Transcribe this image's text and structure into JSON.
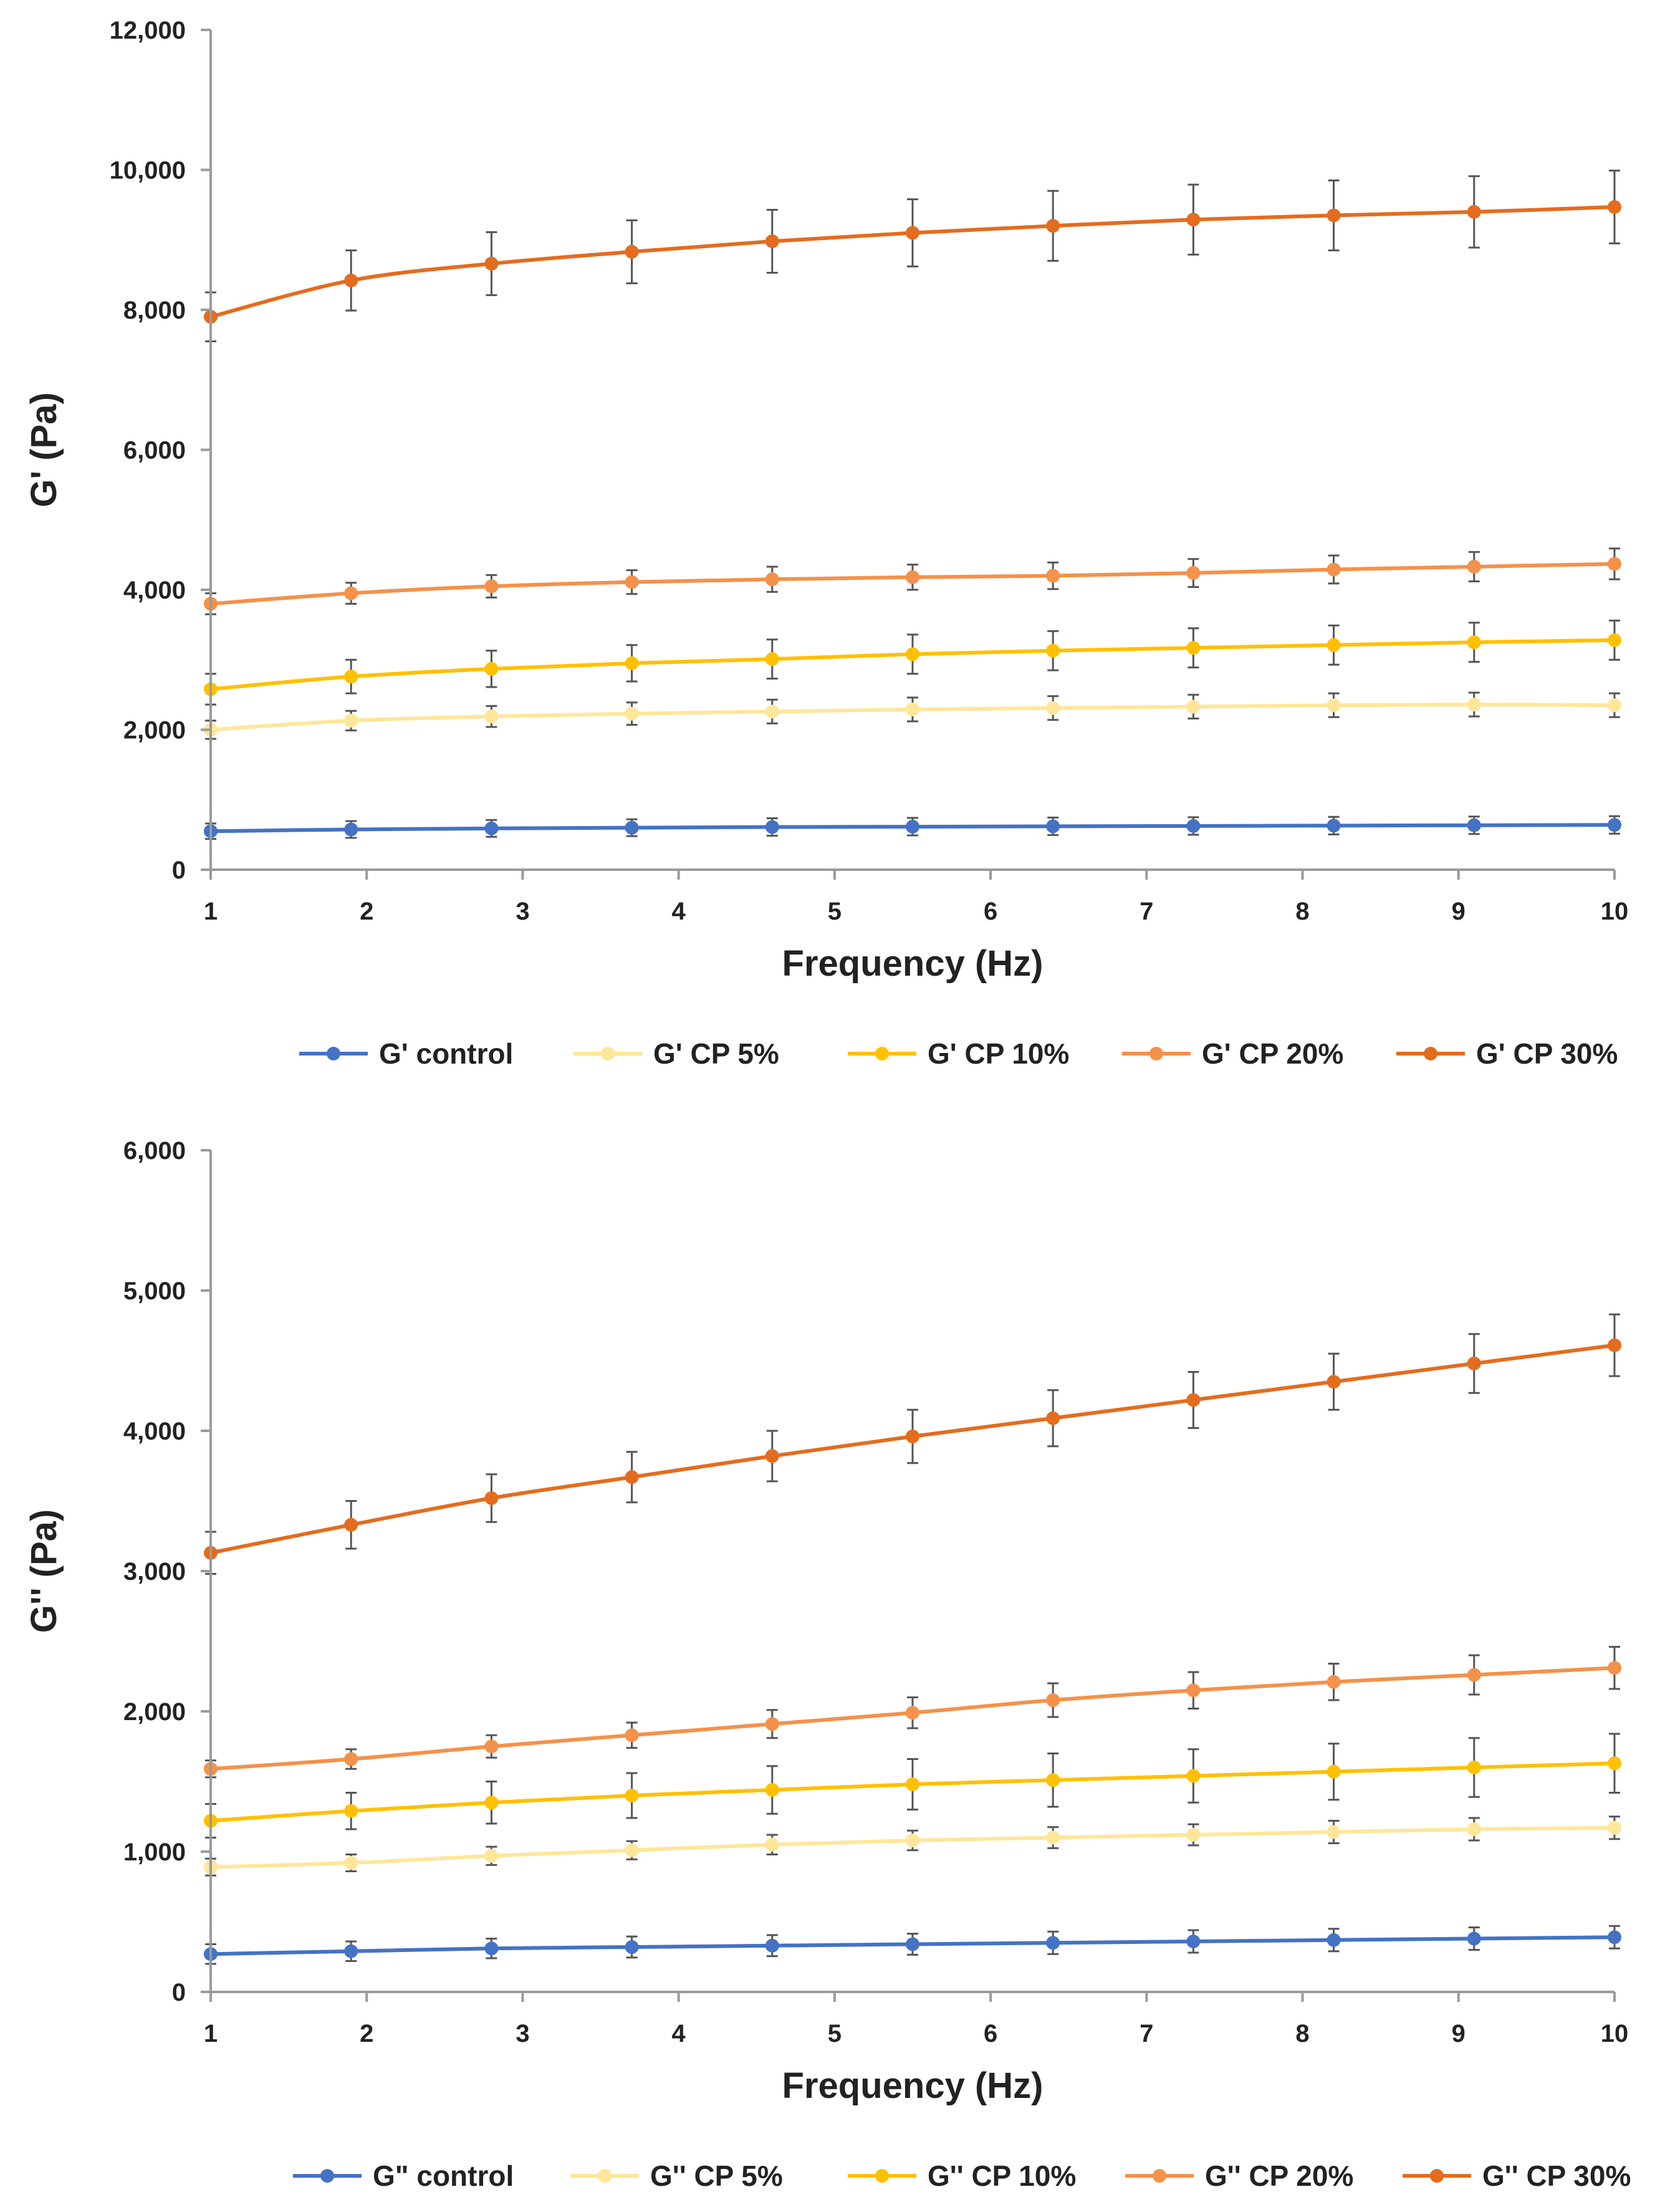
{
  "chart_data": [
    {
      "type": "line",
      "xlabel": "Frequency (Hz)",
      "ylabel": "G' (Pa)",
      "xlim": [
        1,
        10
      ],
      "ylim": [
        0,
        12000
      ],
      "x_ticks": [
        1,
        2,
        3,
        4,
        5,
        6,
        7,
        8,
        9,
        10
      ],
      "y_ticks": [
        0,
        2000,
        4000,
        6000,
        8000,
        10000,
        12000
      ],
      "x_tick_labels": [
        "1",
        "2",
        "3",
        "4",
        "5",
        "6",
        "7",
        "8",
        "9",
        "10"
      ],
      "y_tick_labels": [
        "0",
        "2,000",
        "4,000",
        "6,000",
        "8,000",
        "10,000",
        "12,000"
      ],
      "grid": false,
      "legend_position": "bottom",
      "x": [
        1,
        1.9,
        2.8,
        3.7,
        4.6,
        5.5,
        6.4,
        7.3,
        8.2,
        9.1,
        10
      ],
      "series": [
        {
          "name": "G' control",
          "color": "#4472C4",
          "values": [
            550,
            575,
            590,
            600,
            610,
            615,
            620,
            625,
            630,
            635,
            640
          ],
          "error": [
            110,
            120,
            120,
            120,
            125,
            125,
            125,
            125,
            125,
            125,
            125
          ]
        },
        {
          "name": "G' CP 5%",
          "color": "#FFE699",
          "values": [
            2000,
            2130,
            2190,
            2230,
            2260,
            2290,
            2310,
            2330,
            2350,
            2360,
            2350
          ],
          "error": [
            130,
            140,
            150,
            160,
            170,
            170,
            170,
            170,
            170,
            170,
            170
          ]
        },
        {
          "name": "G' CP 10%",
          "color": "#FFC000",
          "values": [
            2580,
            2760,
            2870,
            2950,
            3010,
            3080,
            3130,
            3170,
            3210,
            3250,
            3280
          ],
          "error": [
            220,
            240,
            260,
            260,
            280,
            280,
            280,
            280,
            280,
            280,
            280
          ]
        },
        {
          "name": "G' CP 20%",
          "color": "#F4914A",
          "values": [
            3800,
            3950,
            4050,
            4110,
            4150,
            4180,
            4200,
            4240,
            4290,
            4330,
            4370
          ],
          "error": [
            150,
            150,
            160,
            170,
            180,
            180,
            190,
            200,
            200,
            210,
            220
          ]
        },
        {
          "name": "G' CP 30%",
          "color": "#E46C1E",
          "values": [
            7900,
            8420,
            8660,
            8830,
            8980,
            9100,
            9200,
            9290,
            9350,
            9400,
            9470
          ],
          "error": [
            350,
            430,
            450,
            450,
            450,
            480,
            500,
            500,
            500,
            510,
            520
          ]
        }
      ]
    },
    {
      "type": "line",
      "xlabel": "Frequency (Hz)",
      "ylabel": "G'' (Pa)",
      "xlim": [
        1,
        10
      ],
      "ylim": [
        0,
        6000
      ],
      "x_ticks": [
        1,
        2,
        3,
        4,
        5,
        6,
        7,
        8,
        9,
        10
      ],
      "y_ticks": [
        0,
        1000,
        2000,
        3000,
        4000,
        5000,
        6000
      ],
      "x_tick_labels": [
        "1",
        "2",
        "3",
        "4",
        "5",
        "6",
        "7",
        "8",
        "9",
        "10"
      ],
      "y_tick_labels": [
        "0",
        "1,000",
        "2,000",
        "3,000",
        "4,000",
        "5,000",
        "6,000"
      ],
      "grid": false,
      "legend_position": "bottom",
      "x": [
        1,
        1.9,
        2.8,
        3.7,
        4.6,
        5.5,
        6.4,
        7.3,
        8.2,
        9.1,
        10
      ],
      "series": [
        {
          "name": "G\" control",
          "color": "#4472C4",
          "values": [
            270,
            290,
            310,
            320,
            330,
            340,
            350,
            360,
            370,
            380,
            390
          ],
          "error": [
            70,
            70,
            70,
            75,
            75,
            75,
            80,
            80,
            80,
            80,
            80
          ]
        },
        {
          "name": "G'' CP 5%",
          "color": "#FFE699",
          "values": [
            890,
            920,
            970,
            1010,
            1050,
            1080,
            1100,
            1120,
            1140,
            1160,
            1170
          ],
          "error": [
            60,
            60,
            65,
            65,
            70,
            70,
            75,
            75,
            80,
            80,
            80
          ]
        },
        {
          "name": "G'' CP 10%",
          "color": "#FFC000",
          "values": [
            1220,
            1290,
            1350,
            1400,
            1440,
            1480,
            1510,
            1540,
            1570,
            1600,
            1630
          ],
          "error": [
            120,
            130,
            150,
            160,
            170,
            180,
            190,
            190,
            200,
            210,
            210
          ]
        },
        {
          "name": "G'' CP 20%",
          "color": "#F4914A",
          "values": [
            1590,
            1660,
            1750,
            1830,
            1910,
            1990,
            2080,
            2150,
            2210,
            2260,
            2310
          ],
          "error": [
            60,
            70,
            80,
            90,
            100,
            110,
            120,
            130,
            130,
            140,
            150
          ]
        },
        {
          "name": "G'' CP 30%",
          "color": "#E46C1E",
          "values": [
            3130,
            3330,
            3520,
            3670,
            3820,
            3960,
            4090,
            4220,
            4350,
            4480,
            4610
          ],
          "error": [
            150,
            170,
            170,
            180,
            180,
            190,
            200,
            200,
            200,
            210,
            220
          ]
        }
      ]
    }
  ]
}
